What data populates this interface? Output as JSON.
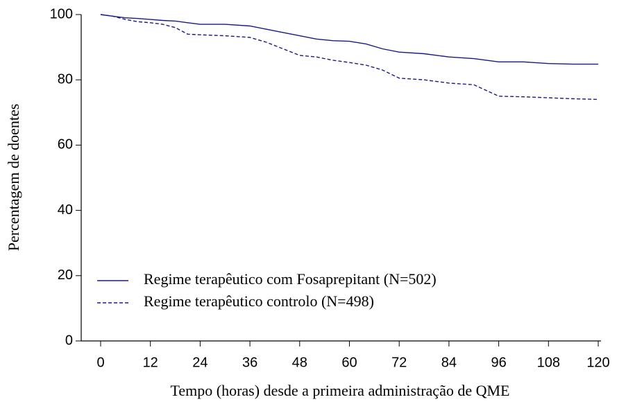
{
  "chart_data": {
    "type": "line",
    "x_label": "Tempo (horas) desde a primeira administração de QME",
    "y_label": "Percentagem de doentes",
    "x": [
      0,
      3,
      6,
      9,
      12,
      15,
      18,
      21,
      24,
      30,
      36,
      40,
      44,
      48,
      52,
      56,
      60,
      64,
      68,
      72,
      78,
      84,
      90,
      96,
      102,
      108,
      114,
      120
    ],
    "series": [
      {
        "name": "Regime terapêutico com Fosaprepitant (N=502)",
        "color": "#1a1a80",
        "line_style": "solid",
        "values": [
          100,
          99.5,
          99,
          98.8,
          98.5,
          98.2,
          98,
          97.5,
          97,
          97,
          96.5,
          95.5,
          94.5,
          93.5,
          92.5,
          92,
          91.8,
          91,
          89.5,
          88.5,
          88,
          87,
          86.5,
          85.5,
          85.5,
          85,
          84.8,
          84.8
        ]
      },
      {
        "name": "Regime terapêutico controlo (N=498)",
        "color": "#1a1a80",
        "line_style": "dashed",
        "values": [
          100,
          99.5,
          98.5,
          97.8,
          97.5,
          97,
          96,
          94,
          93.8,
          93.5,
          93,
          91.5,
          89.5,
          87.5,
          87,
          86,
          85.3,
          84.5,
          83,
          80.5,
          80,
          79,
          78.5,
          75,
          74.8,
          74.5,
          74.2,
          74
        ]
      }
    ],
    "xlim": [
      0,
      120
    ],
    "xticks": [
      0,
      12,
      24,
      36,
      48,
      60,
      72,
      84,
      96,
      108,
      120
    ],
    "ylim": [
      0,
      100
    ],
    "yticks": [
      0,
      20,
      40,
      60,
      80,
      100
    ],
    "grid": false,
    "legend": "lower-left"
  }
}
